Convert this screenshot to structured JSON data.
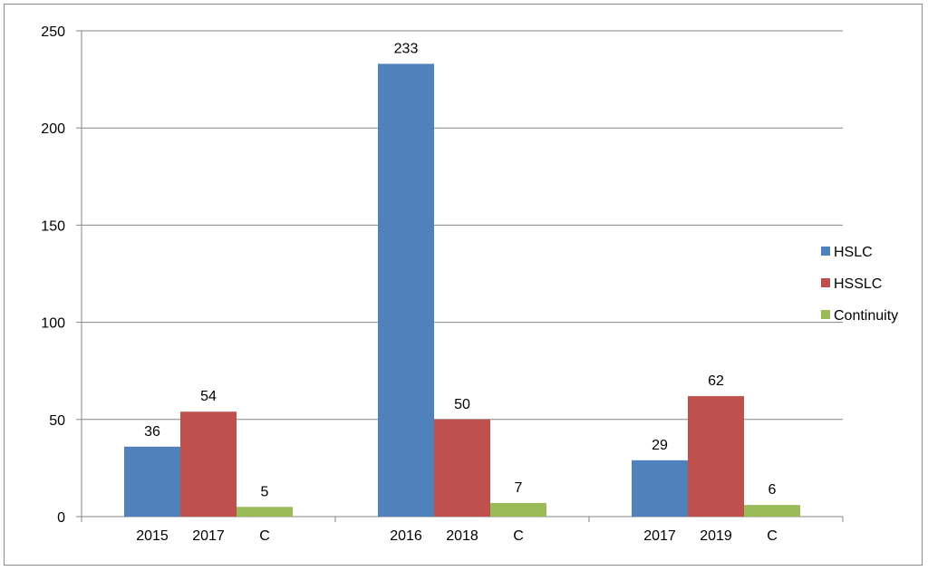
{
  "chart_data": {
    "type": "bar",
    "title": "",
    "xlabel": "",
    "ylabel": "",
    "ylim": [
      0,
      250
    ],
    "yticks": [
      0,
      50,
      100,
      150,
      200,
      250
    ],
    "grid": true,
    "legend_position": "right",
    "groups": [
      {
        "tick_labels": [
          "2015",
          "2017",
          "C"
        ],
        "values": [
          36,
          54,
          5
        ]
      },
      {
        "tick_labels": [
          "2016",
          "2018",
          "C"
        ],
        "values": [
          233,
          50,
          7
        ]
      },
      {
        "tick_labels": [
          "2017",
          "2019",
          "C"
        ],
        "values": [
          29,
          62,
          6
        ]
      }
    ],
    "series": [
      {
        "name": "HSLC",
        "color": "#4f81bd",
        "values": [
          36,
          233,
          29
        ]
      },
      {
        "name": "HSSLC",
        "color": "#c0504d",
        "values": [
          54,
          50,
          62
        ]
      },
      {
        "name": "Continuity",
        "color": "#9bbb59",
        "values": [
          5,
          7,
          6
        ]
      }
    ]
  }
}
